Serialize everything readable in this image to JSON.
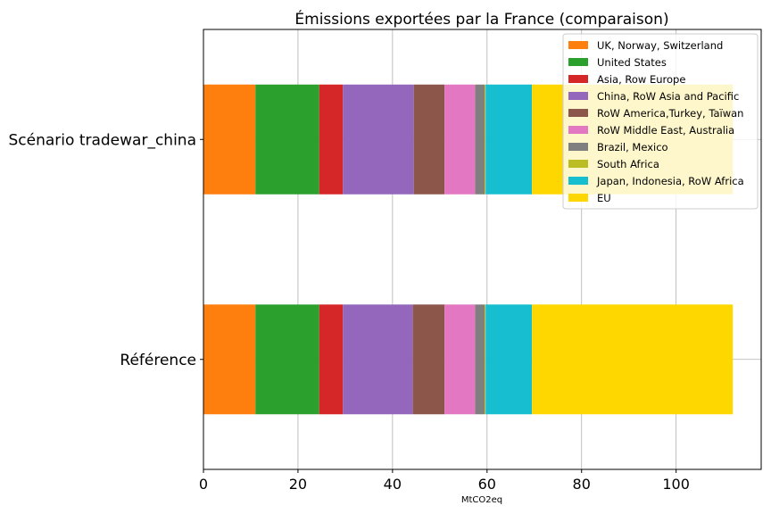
{
  "chart_data": {
    "type": "bar",
    "orientation": "horizontal",
    "stacked": true,
    "title": "Émissions exportées par la France (comparaison)",
    "xlabel": "MtCO2eq",
    "ylabel": "",
    "xlim": [
      0,
      118
    ],
    "xticks": [
      0,
      20,
      40,
      60,
      80,
      100
    ],
    "grid": true,
    "legend_position": "top-right",
    "categories": [
      "Scénario tradewar_china",
      "Référence"
    ],
    "series": [
      {
        "name": "UK, Norway, Switzerland",
        "color": "#ff7f0e",
        "values": [
          11.0,
          11.0
        ]
      },
      {
        "name": "United States",
        "color": "#2ca02c",
        "values": [
          13.5,
          13.5
        ]
      },
      {
        "name": "Asia, Row Europe",
        "color": "#d62728",
        "values": [
          5.0,
          5.0
        ]
      },
      {
        "name": "China, RoW Asia and Pacific",
        "color": "#9467bd",
        "values": [
          15.0,
          14.8
        ]
      },
      {
        "name": "RoW America,Turkey, Taïwan",
        "color": "#8c564b",
        "values": [
          6.5,
          6.7
        ]
      },
      {
        "name": "RoW Middle East, Australia",
        "color": "#e377c2",
        "values": [
          6.5,
          6.5
        ]
      },
      {
        "name": "Brazil, Mexico",
        "color": "#7f7f7f",
        "values": [
          2.0,
          2.0
        ]
      },
      {
        "name": "South Africa",
        "color": "#bcbd22",
        "values": [
          0.2,
          0.2
        ]
      },
      {
        "name": "Japan, Indonesia, RoW Africa",
        "color": "#17becf",
        "values": [
          9.8,
          9.8
        ]
      },
      {
        "name": "EU",
        "color": "#ffd700",
        "values": [
          42.5,
          42.5
        ]
      }
    ]
  }
}
